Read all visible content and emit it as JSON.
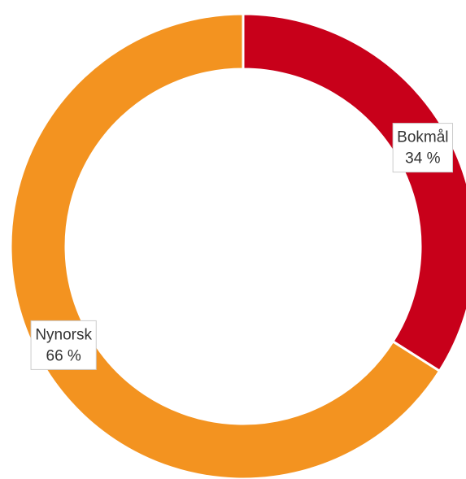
{
  "chart_data": {
    "type": "donut",
    "categories": [
      "Bokmål",
      "Nynorsk"
    ],
    "values": [
      34,
      66
    ],
    "value_labels": [
      "34 %",
      "66 %"
    ],
    "colors": [
      "#c8001a",
      "#f39320"
    ]
  }
}
